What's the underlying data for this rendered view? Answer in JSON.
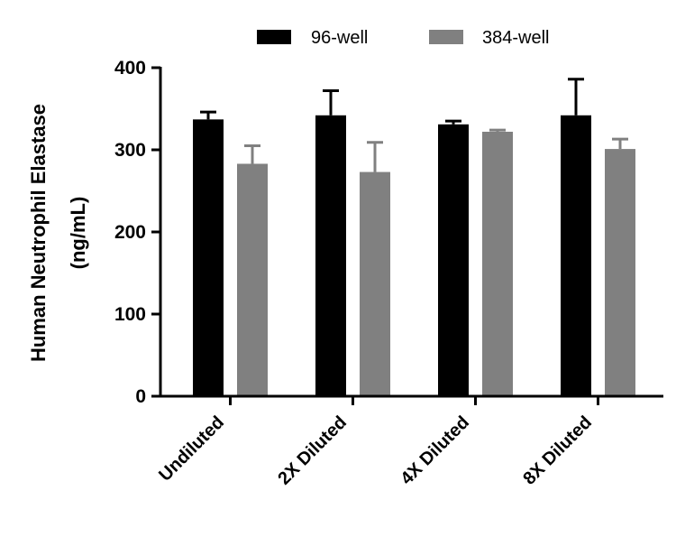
{
  "chart_data": {
    "type": "bar",
    "title": "",
    "xlabel": "",
    "ylabel_lines": [
      "Human Neutrophil Elastase",
      "(ng/mL)"
    ],
    "ylim": [
      0,
      400
    ],
    "yticks": [
      0,
      100,
      200,
      300,
      400
    ],
    "categories": [
      "Undiluted",
      "2X Diluted",
      "4X Diluted",
      "8X Diluted"
    ],
    "legend_position": "top",
    "series": [
      {
        "name": "96-well",
        "color": "#000000",
        "values": [
          337,
          342,
          331,
          342
        ],
        "errors": [
          9,
          30,
          4,
          44
        ]
      },
      {
        "name": "384-well",
        "color": "#808080",
        "values": [
          283,
          273,
          322,
          301
        ],
        "errors": [
          22,
          36,
          2,
          12
        ]
      }
    ]
  }
}
